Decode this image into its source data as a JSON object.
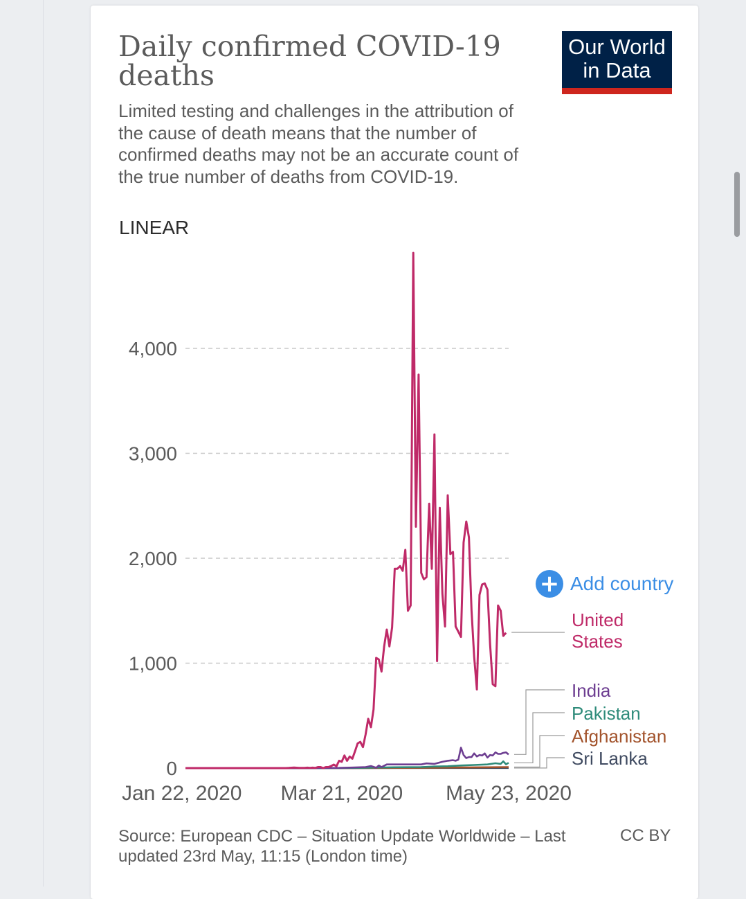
{
  "header": {
    "title": "Daily confirmed COVID-19 deaths",
    "subtitle": "Limited testing and challenges in the attribution of the cause of death means that the number of confirmed deaths may not be an accurate count of the true number of deaths from COVID-19.",
    "scale_toggle": "LINEAR",
    "logo_line1": "Our World",
    "logo_line2": "in Data"
  },
  "controls": {
    "add_country_label": "Add country",
    "add_icon": "plus-circle-icon"
  },
  "footer": {
    "source": "Source: European CDC – Situation Update Worldwide – Last updated 23rd May, 11:15 (London time)",
    "license": "CC BY"
  },
  "colors": {
    "accent": "#3b8ee5",
    "logo_bg": "#002147",
    "logo_bar": "#ce261e"
  },
  "chart_data": {
    "type": "line",
    "title": "Daily confirmed COVID-19 deaths",
    "xlabel": "",
    "ylabel": "",
    "x_start": "Jan 22, 2020",
    "x_end": "May 23, 2020",
    "x_ticks": [
      "Jan 22, 2020",
      "Mar 21, 2020",
      "May 23, 2020"
    ],
    "y_ticks": [
      0,
      1000,
      2000,
      3000,
      4000
    ],
    "y_tick_labels": [
      "0",
      "1,000",
      "2,000",
      "3,000",
      "4,000"
    ],
    "ylim": [
      0,
      4900
    ],
    "grid": "horizontal-dashed",
    "legend": "right-labels",
    "series": [
      {
        "name": "United States",
        "label_lines": [
          "United",
          "States"
        ],
        "color": "#bf2a68",
        "points": [
          [
            "Jan 22, 2020",
            0
          ],
          [
            "Feb 29, 2020",
            0
          ],
          [
            "Mar 1, 2020",
            1
          ],
          [
            "Mar 3, 2020",
            5
          ],
          [
            "Mar 5, 2020",
            1
          ],
          [
            "Mar 6, 2020",
            2
          ],
          [
            "Mar 7, 2020",
            1
          ],
          [
            "Mar 8, 2020",
            4
          ],
          [
            "Mar 9, 2020",
            1
          ],
          [
            "Mar 10, 2020",
            4
          ],
          [
            "Mar 11, 2020",
            1
          ],
          [
            "Mar 12, 2020",
            10
          ],
          [
            "Mar 13, 2020",
            10
          ],
          [
            "Mar 14, 2020",
            0
          ],
          [
            "Mar 15, 2020",
            10
          ],
          [
            "Mar 16, 2020",
            10
          ],
          [
            "Mar 17, 2020",
            20
          ],
          [
            "Mar 18, 2020",
            33
          ],
          [
            "Mar 19, 2020",
            18
          ],
          [
            "Mar 20, 2020",
            70
          ],
          [
            "Mar 21, 2020",
            60
          ],
          [
            "Mar 22, 2020",
            120
          ],
          [
            "Mar 23, 2020",
            70
          ],
          [
            "Mar 24, 2020",
            110
          ],
          [
            "Mar 25, 2020",
            90
          ],
          [
            "Mar 26, 2020",
            160
          ],
          [
            "Mar 27, 2020",
            235
          ],
          [
            "Mar 28, 2020",
            250
          ],
          [
            "Mar 29, 2020",
            200
          ],
          [
            "Mar 30, 2020",
            320
          ],
          [
            "Mar 31, 2020",
            470
          ],
          [
            "Apr 1, 2020",
            390
          ],
          [
            "Apr 2, 2020",
            560
          ],
          [
            "Apr 3, 2020",
            1050
          ],
          [
            "Apr 4, 2020",
            1035
          ],
          [
            "Apr 5, 2020",
            920
          ],
          [
            "Apr 6, 2020",
            1160
          ],
          [
            "Apr 7, 2020",
            1320
          ],
          [
            "Apr 8, 2020",
            1160
          ],
          [
            "Apr 9, 2020",
            1340
          ],
          [
            "Apr 10, 2020",
            1900
          ],
          [
            "Apr 11, 2020",
            1900
          ],
          [
            "Apr 12, 2020",
            1925
          ],
          [
            "Apr 13, 2020",
            1880
          ],
          [
            "Apr 14, 2020",
            2080
          ],
          [
            "Apr 15, 2020",
            1500
          ],
          [
            "Apr 16, 2020",
            1550
          ],
          [
            "Apr 17, 2020",
            4910
          ],
          [
            "Apr 18, 2020",
            2300
          ],
          [
            "Apr 19, 2020",
            3750
          ],
          [
            "Apr 20, 2020",
            1860
          ],
          [
            "Apr 21, 2020",
            1800
          ],
          [
            "Apr 22, 2020",
            1820
          ],
          [
            "Apr 23, 2020",
            2520
          ],
          [
            "Apr 24, 2020",
            1900
          ],
          [
            "Apr 25, 2020",
            3180
          ],
          [
            "Apr 26, 2020",
            1020
          ],
          [
            "Apr 27, 2020",
            2480
          ],
          [
            "Apr 28, 2020",
            1660
          ],
          [
            "Apr 29, 2020",
            1350
          ],
          [
            "Apr 30, 2020",
            2600
          ],
          [
            "May 1, 2020",
            2040
          ],
          [
            "May 2, 2020",
            2060
          ],
          [
            "May 3, 2020",
            1350
          ],
          [
            "May 4, 2020",
            1300
          ],
          [
            "May 5, 2020",
            1250
          ],
          [
            "May 6, 2020",
            2150
          ],
          [
            "May 7, 2020",
            2350
          ],
          [
            "May 8, 2020",
            2200
          ],
          [
            "May 9, 2020",
            1500
          ],
          [
            "May 10, 2020",
            1060
          ],
          [
            "May 11, 2020",
            750
          ],
          [
            "May 12, 2020",
            1650
          ],
          [
            "May 13, 2020",
            1750
          ],
          [
            "May 14, 2020",
            1760
          ],
          [
            "May 15, 2020",
            1700
          ],
          [
            "May 16, 2020",
            1180
          ],
          [
            "May 17, 2020",
            800
          ],
          [
            "May 18, 2020",
            780
          ],
          [
            "May 19, 2020",
            1550
          ],
          [
            "May 20, 2020",
            1500
          ],
          [
            "May 21, 2020",
            1260
          ],
          [
            "May 22, 2020",
            1290
          ]
        ]
      },
      {
        "name": "India",
        "label_lines": [
          "India"
        ],
        "color": "#6d3e91",
        "points": [
          [
            "Jan 22, 2020",
            0
          ],
          [
            "Mar 11, 2020",
            0
          ],
          [
            "Mar 13, 2020",
            1
          ],
          [
            "Mar 20, 2020",
            2
          ],
          [
            "Mar 25, 2020",
            5
          ],
          [
            "Mar 30, 2020",
            10
          ],
          [
            "Apr 1, 2020",
            20
          ],
          [
            "Apr 3, 2020",
            3
          ],
          [
            "Apr 4, 2020",
            25
          ],
          [
            "Apr 5, 2020",
            10
          ],
          [
            "Apr 7, 2020",
            35
          ],
          [
            "Apr 15, 2020",
            35
          ],
          [
            "Apr 20, 2020",
            35
          ],
          [
            "Apr 22, 2020",
            45
          ],
          [
            "Apr 25, 2020",
            40
          ],
          [
            "Apr 28, 2020",
            60
          ],
          [
            "Apr 30, 2020",
            70
          ],
          [
            "May 2, 2020",
            75
          ],
          [
            "May 3, 2020",
            70
          ],
          [
            "May 4, 2020",
            80
          ],
          [
            "May 5, 2020",
            195
          ],
          [
            "May 6, 2020",
            125
          ],
          [
            "May 7, 2020",
            95
          ],
          [
            "May 8, 2020",
            105
          ],
          [
            "May 9, 2020",
            105
          ],
          [
            "May 10, 2020",
            140
          ],
          [
            "May 11, 2020",
            110
          ],
          [
            "May 12, 2020",
            125
          ],
          [
            "May 13, 2020",
            120
          ],
          [
            "May 14, 2020",
            140
          ],
          [
            "May 15, 2020",
            100
          ],
          [
            "May 16, 2020",
            125
          ],
          [
            "May 17, 2020",
            120
          ],
          [
            "May 18, 2020",
            150
          ],
          [
            "May 19, 2020",
            135
          ],
          [
            "May 20, 2020",
            135
          ],
          [
            "May 21, 2020",
            145
          ],
          [
            "May 22, 2020",
            150
          ],
          [
            "May 23, 2020",
            130
          ]
        ]
      },
      {
        "name": "Pakistan",
        "label_lines": [
          "Pakistan"
        ],
        "color": "#2e8b7a",
        "points": [
          [
            "Jan 22, 2020",
            0
          ],
          [
            "Mar 20, 2020",
            0
          ],
          [
            "Mar 30, 2020",
            3
          ],
          [
            "Apr 10, 2020",
            8
          ],
          [
            "Apr 20, 2020",
            10
          ],
          [
            "Apr 25, 2020",
            15
          ],
          [
            "Apr 30, 2020",
            18
          ],
          [
            "May 5, 2020",
            25
          ],
          [
            "May 10, 2020",
            30
          ],
          [
            "May 15, 2020",
            35
          ],
          [
            "May 18, 2020",
            46
          ],
          [
            "May 20, 2020",
            40
          ],
          [
            "May 21, 2020",
            65
          ],
          [
            "May 22, 2020",
            36
          ],
          [
            "May 23, 2020",
            50
          ]
        ]
      },
      {
        "name": "Afghanistan",
        "label_lines": [
          "Afghanistan"
        ],
        "color": "#a2532c",
        "points": [
          [
            "Jan 22, 2020",
            0
          ],
          [
            "Mar 25, 2020",
            0
          ],
          [
            "Apr 10, 2020",
            2
          ],
          [
            "Apr 25, 2020",
            4
          ],
          [
            "May 5, 2020",
            6
          ],
          [
            "May 15, 2020",
            8
          ],
          [
            "May 23, 2020",
            10
          ]
        ]
      },
      {
        "name": "Sri Lanka",
        "label_lines": [
          "Sri Lanka"
        ],
        "color": "#3f4a60",
        "points": [
          [
            "Jan 22, 2020",
            0
          ],
          [
            "May 23, 2020",
            1
          ]
        ]
      }
    ]
  }
}
